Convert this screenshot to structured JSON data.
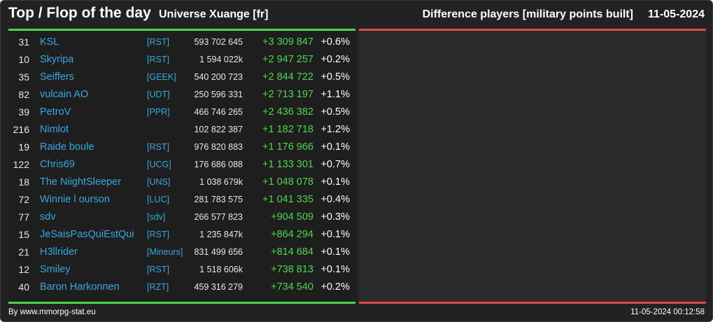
{
  "header": {
    "title": "Top / Flop of the day",
    "universe": "Universe Xuange [fr]",
    "subtitle": "Difference players [military points built]",
    "date": "11-05-2024"
  },
  "colors": {
    "positive": "#4fd64f",
    "negative": "#d94a44",
    "link": "#3aa7e0"
  },
  "rows": [
    {
      "rank": "31",
      "name": "KSL",
      "alliance": "[RST]",
      "points": "593 702 645",
      "diff": "+3 309 847",
      "pct": "+0.6%"
    },
    {
      "rank": "10",
      "name": "Skyripa",
      "alliance": "[RST]",
      "points": "1 594 022k",
      "diff": "+2 947 257",
      "pct": "+0.2%"
    },
    {
      "rank": "35",
      "name": "Seiffers",
      "alliance": "[GEEK]",
      "points": "540 200 723",
      "diff": "+2 844 722",
      "pct": "+0.5%"
    },
    {
      "rank": "82",
      "name": "vulcain AO",
      "alliance": "[UDT]",
      "points": "250 596 331",
      "diff": "+2 713 197",
      "pct": "+1.1%"
    },
    {
      "rank": "39",
      "name": "PetroV",
      "alliance": "[PPR]",
      "points": "466 746 265",
      "diff": "+2 436 382",
      "pct": "+0.5%"
    },
    {
      "rank": "216",
      "name": "Nimlot",
      "alliance": "",
      "points": "102 822 387",
      "diff": "+1 182 718",
      "pct": "+1.2%"
    },
    {
      "rank": "19",
      "name": "Raide boule",
      "alliance": "[RST]",
      "points": "976 820 883",
      "diff": "+1 176 966",
      "pct": "+0.1%"
    },
    {
      "rank": "122",
      "name": "Chris69",
      "alliance": "[UCG]",
      "points": "176 686 088",
      "diff": "+1 133 301",
      "pct": "+0.7%"
    },
    {
      "rank": "18",
      "name": "The NiightSleeper",
      "alliance": "[UNS]",
      "points": "1 038 679k",
      "diff": "+1 048 078",
      "pct": "+0.1%"
    },
    {
      "rank": "72",
      "name": "Winnie l ourson",
      "alliance": "[LUC]",
      "points": "281 783 575",
      "diff": "+1 041 335",
      "pct": "+0.4%"
    },
    {
      "rank": "77",
      "name": "sdv",
      "alliance": "[sdv]",
      "points": "266 577 823",
      "diff": "+904 509",
      "pct": "+0.3%"
    },
    {
      "rank": "15",
      "name": "JeSaisPasQuiEstQui",
      "alliance": "[RST]",
      "points": "1 235 847k",
      "diff": "+864 294",
      "pct": "+0.1%"
    },
    {
      "rank": "21",
      "name": "H3llrider",
      "alliance": "[Mineurs]",
      "points": "831 499 656",
      "diff": "+814 684",
      "pct": "+0.1%"
    },
    {
      "rank": "12",
      "name": "Smiley",
      "alliance": "[RST]",
      "points": "1 518 606k",
      "diff": "+738 813",
      "pct": "+0.1%"
    },
    {
      "rank": "40",
      "name": "Baron Harkonnen",
      "alliance": "[RZT]",
      "points": "459 316 279",
      "diff": "+734 540",
      "pct": "+0.2%"
    }
  ],
  "footer": {
    "source": "By www.mmorpg-stat.eu",
    "timestamp": "11-05-2024 00:12:58"
  }
}
